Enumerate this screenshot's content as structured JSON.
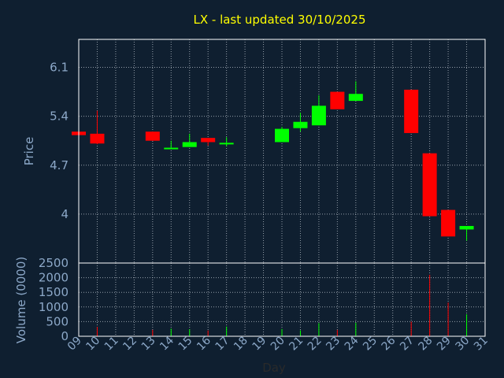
{
  "chart_data": {
    "type": "candlestick",
    "title": "LX - last updated 30/10/2025",
    "xlabel": "Day",
    "price_panel": {
      "ylabel": "Price",
      "yticks": [
        "4",
        "4.7",
        "5.4",
        "6.1"
      ],
      "ylim": [
        3.3,
        6.5
      ]
    },
    "volume_panel": {
      "ylabel": "Volume (0000)",
      "yticks": [
        "0",
        "500",
        "1000",
        "1500",
        "2000",
        "2500"
      ],
      "ylim": [
        0,
        2500
      ]
    },
    "x_ticks": [
      "09",
      "10",
      "11",
      "12",
      "13",
      "14",
      "15",
      "16",
      "17",
      "18",
      "19",
      "20",
      "21",
      "22",
      "23",
      "24",
      "25",
      "26",
      "27",
      "28",
      "29",
      "30",
      "31"
    ],
    "candles": [
      {
        "day": 9,
        "open": 5.18,
        "high": 5.2,
        "low": 5.12,
        "close": 5.13,
        "volume": 0
      },
      {
        "day": 10,
        "open": 5.15,
        "high": 5.48,
        "low": 5.0,
        "close": 5.01,
        "volume": 320
      },
      {
        "day": 13,
        "open": 5.18,
        "high": 5.18,
        "low": 5.05,
        "close": 5.05,
        "volume": 220
      },
      {
        "day": 14,
        "open": 4.94,
        "high": 5.05,
        "low": 4.93,
        "close": 4.95,
        "volume": 260
      },
      {
        "day": 15,
        "open": 4.96,
        "high": 5.15,
        "low": 4.96,
        "close": 5.03,
        "volume": 240
      },
      {
        "day": 16,
        "open": 5.09,
        "high": 5.09,
        "low": 4.98,
        "close": 5.03,
        "volume": 200
      },
      {
        "day": 17,
        "open": 5.0,
        "high": 5.1,
        "low": 4.97,
        "close": 5.02,
        "volume": 330
      },
      {
        "day": 20,
        "open": 5.03,
        "high": 5.25,
        "low": 5.03,
        "close": 5.22,
        "volume": 250
      },
      {
        "day": 21,
        "open": 5.23,
        "high": 5.45,
        "low": 5.18,
        "close": 5.32,
        "volume": 200
      },
      {
        "day": 22,
        "open": 5.27,
        "high": 5.7,
        "low": 5.27,
        "close": 5.55,
        "volume": 450
      },
      {
        "day": 23,
        "open": 5.75,
        "high": 5.75,
        "low": 5.5,
        "close": 5.5,
        "volume": 220
      },
      {
        "day": 24,
        "open": 5.62,
        "high": 5.9,
        "low": 5.62,
        "close": 5.72,
        "volume": 460
      },
      {
        "day": 27,
        "open": 5.78,
        "high": 5.78,
        "low": 5.16,
        "close": 5.16,
        "volume": 500
      },
      {
        "day": 28,
        "open": 4.87,
        "high": 4.87,
        "low": 3.97,
        "close": 3.97,
        "volume": 2100
      },
      {
        "day": 29,
        "open": 4.06,
        "high": 4.06,
        "low": 3.68,
        "close": 3.68,
        "volume": 1150
      },
      {
        "day": 30,
        "open": 3.78,
        "high": 3.83,
        "low": 3.62,
        "close": 3.83,
        "volume": 750
      }
    ],
    "colors": {
      "background": "#0f1f30",
      "up": "#00ff00",
      "down": "#ff0000",
      "title": "#ffff00",
      "axis_text": "#8ca8c8",
      "grid": "#c0c8d0",
      "frame": "#ffffff"
    },
    "grid": true
  }
}
